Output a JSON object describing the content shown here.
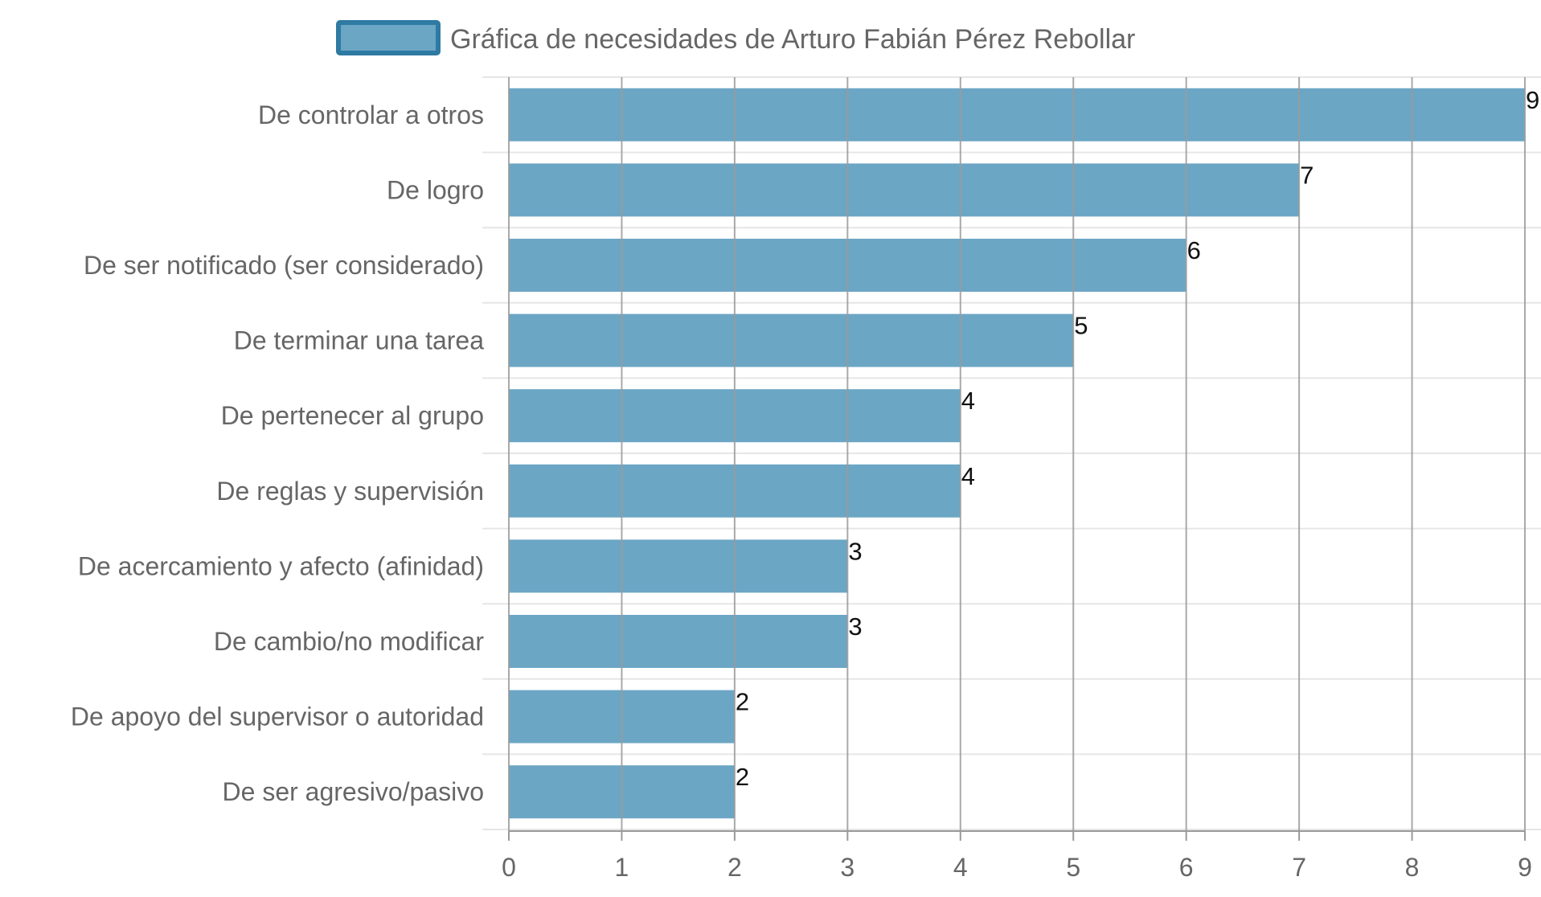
{
  "chart_data": {
    "type": "bar",
    "orientation": "horizontal",
    "categories": [
      "De controlar a otros",
      "De logro",
      "De ser notificado (ser considerado)",
      "De terminar una tarea",
      "De pertenecer al grupo",
      "De reglas y supervisión",
      "De acercamiento y afecto (afinidad)",
      "De cambio/no modificar",
      "De apoyo del supervisor o autoridad",
      "De ser agresivo/pasivo"
    ],
    "series": [
      {
        "name": "Gráfica de necesidades de Arturo Fabián Pérez Rebollar",
        "values": [
          9,
          7,
          6,
          5,
          4,
          4,
          3,
          3,
          2,
          2
        ]
      }
    ],
    "x_ticks": [
      "0",
      "1",
      "2",
      "3",
      "4",
      "5",
      "6",
      "7",
      "8",
      "9"
    ],
    "xlim": [
      0,
      9
    ],
    "grid": true,
    "legend_position": "top",
    "data_labels": true,
    "colors": {
      "bar_fill": "#6ca6c5",
      "bar_border": "#2e7aa2",
      "grid_major": "#9a9a9a",
      "grid_minor": "#e6e6e6",
      "axis_text": "#666666",
      "value_text": "#111111"
    }
  }
}
